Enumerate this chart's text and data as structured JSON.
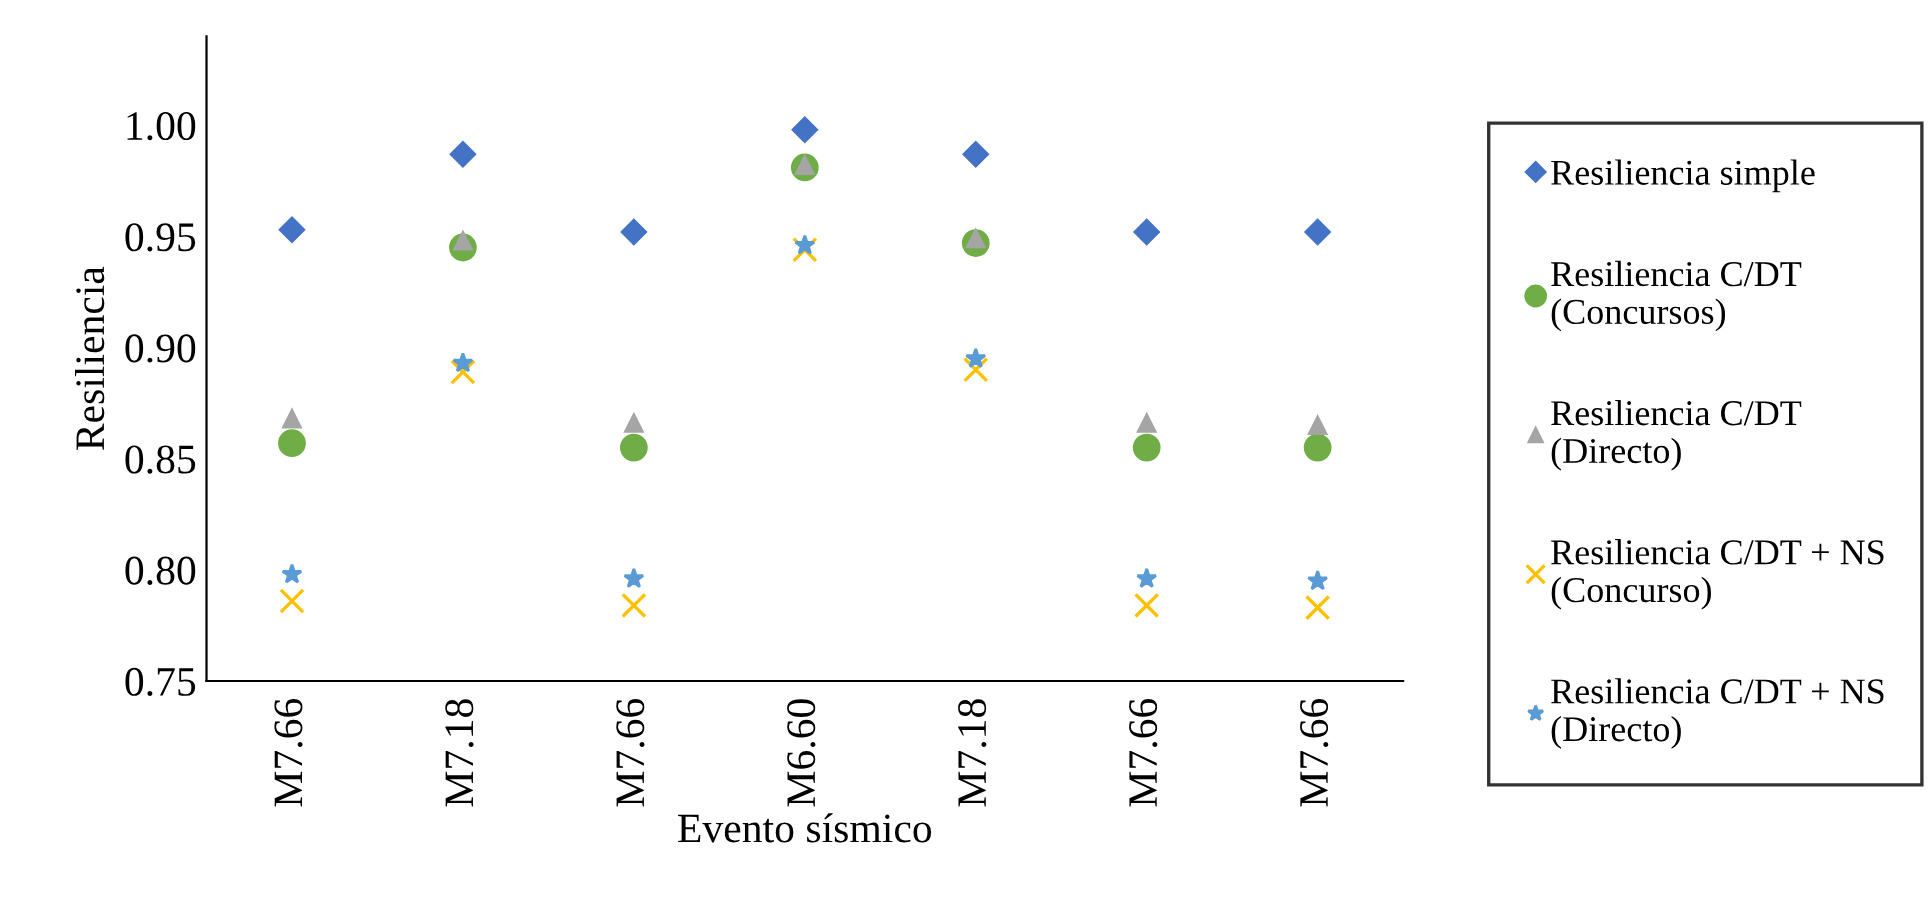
{
  "chart_data": {
    "type": "scatter",
    "xlabel": "Evento sísmico",
    "ylabel": "Resiliencia",
    "categories": [
      "M7.66",
      "M7.18",
      "M7.66",
      "M6.60",
      "M7.18",
      "M7.66",
      "M7.66"
    ],
    "ylim": [
      0.75,
      1.04
    ],
    "yticks": [
      {
        "value": 0.75,
        "label": "0.75"
      },
      {
        "value": 0.8,
        "label": "0.80"
      },
      {
        "value": 0.85,
        "label": "0.85"
      },
      {
        "value": 0.9,
        "label": "0.90"
      },
      {
        "value": 0.95,
        "label": "0.95"
      },
      {
        "value": 1.0,
        "label": "1.00"
      }
    ],
    "grid": false,
    "legend": "right",
    "series": [
      {
        "name": "Resiliencia simple",
        "color": "#4472c4",
        "marker": "diamond",
        "values": [
          0.953,
          0.987,
          0.952,
          0.998,
          0.987,
          0.952,
          0.952
        ]
      },
      {
        "name": "Resiliencia C/DT\n(Concursos)",
        "color": "#70ad47",
        "marker": "circle",
        "values": [
          0.857,
          0.945,
          0.855,
          0.981,
          0.947,
          0.855,
          0.855
        ]
      },
      {
        "name": "Resiliencia C/DT\n(Directo)",
        "color": "#a5a5a5",
        "marker": "triangle",
        "values": [
          0.868,
          0.948,
          0.866,
          0.982,
          0.949,
          0.866,
          0.865
        ]
      },
      {
        "name": "Resiliencia C/DT + NS\n(Concurso)",
        "color": "#ffc000",
        "marker": "cross",
        "values": [
          0.786,
          0.889,
          0.784,
          0.944,
          0.89,
          0.784,
          0.783
        ]
      },
      {
        "name": "Resiliencia C/DT + NS\n(Directo)",
        "color": "#5b9bd5",
        "marker": "star",
        "values": [
          0.798,
          0.893,
          0.796,
          0.946,
          0.895,
          0.796,
          0.795
        ]
      }
    ]
  }
}
